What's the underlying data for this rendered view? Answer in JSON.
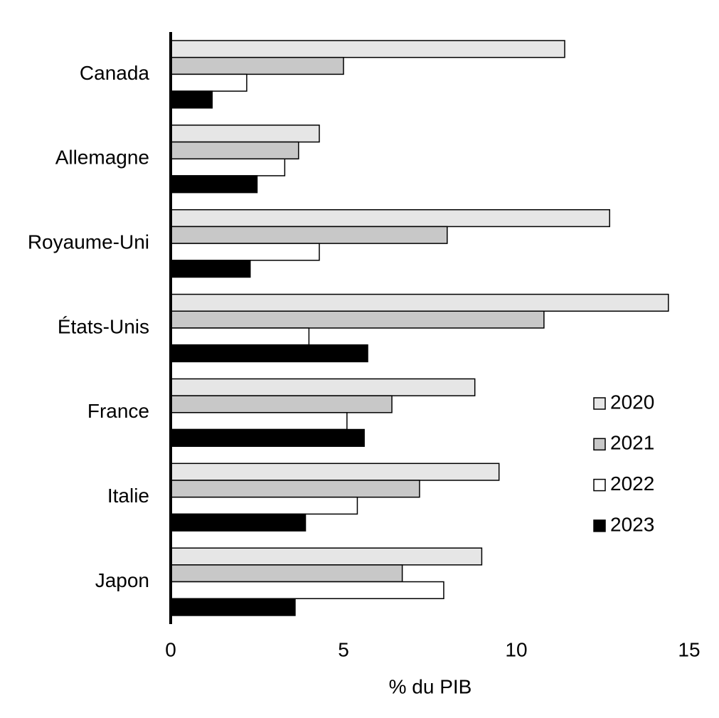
{
  "chart_data": {
    "type": "hbar",
    "x_label": "% du PIB",
    "categories": [
      "Canada",
      "Allemagne",
      "Royaume-Uni",
      "États-Unis",
      "France",
      "Italie",
      "Japon"
    ],
    "series": [
      {
        "name": "2020",
        "color": "#e6e6e6",
        "values": [
          11.4,
          4.3,
          12.7,
          14.4,
          8.8,
          9.5,
          9.0
        ]
      },
      {
        "name": "2021",
        "color": "#c8c8c8",
        "values": [
          5.0,
          3.7,
          8.0,
          10.8,
          6.4,
          7.2,
          6.7
        ]
      },
      {
        "name": "2022",
        "color": "#ffffff",
        "values": [
          2.2,
          3.3,
          4.3,
          4.0,
          5.1,
          5.4,
          7.9
        ]
      },
      {
        "name": "2023",
        "color": "#000000",
        "values": [
          1.2,
          2.5,
          2.3,
          5.7,
          5.6,
          3.9,
          3.6
        ]
      }
    ],
    "xlim": [
      0,
      15
    ],
    "xticks": [
      0,
      5,
      10,
      15
    ],
    "grid": false,
    "legend": "lower right"
  }
}
